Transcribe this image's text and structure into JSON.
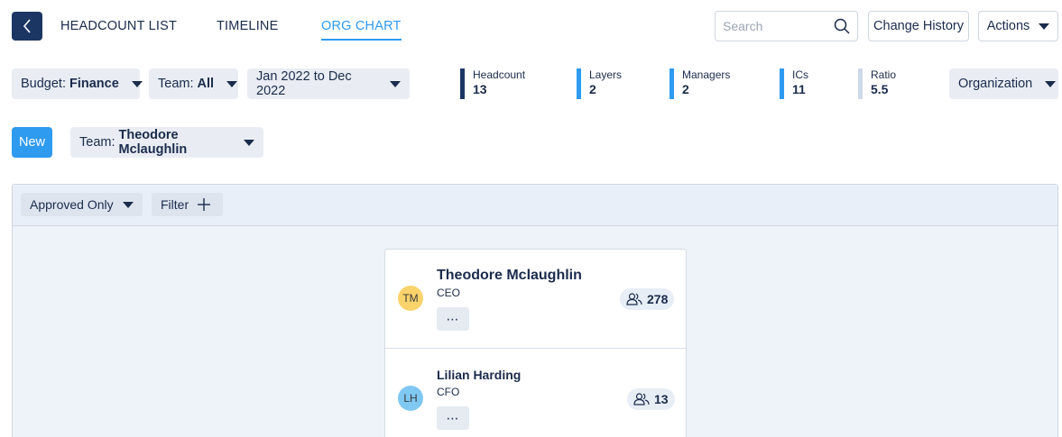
{
  "nav": {
    "tabs": [
      {
        "label": "HEADCOUNT LIST",
        "active": false
      },
      {
        "label": "TIMELINE",
        "active": false
      },
      {
        "label": "ORG CHART",
        "active": true
      }
    ]
  },
  "toolbar": {
    "search_placeholder": "Search",
    "change_history_label": "Change History",
    "actions_label": "Actions"
  },
  "filters": {
    "budget": {
      "prefix": "Budget:",
      "value": "Finance"
    },
    "team": {
      "prefix": "Team:",
      "value": "All"
    },
    "date_range": "Jan 2022 to Dec 2022",
    "view_select": "Organization"
  },
  "stats": [
    {
      "label": "Headcount",
      "value": "13",
      "color": "#1c3664"
    },
    {
      "label": "Layers",
      "value": "2",
      "color": "#2e9af0"
    },
    {
      "label": "Managers",
      "value": "2",
      "color": "#2e9af0"
    },
    {
      "label": "ICs",
      "value": "11",
      "color": "#2e9af0"
    },
    {
      "label": "Ratio",
      "value": "5.5",
      "color": "#cdd9ea"
    }
  ],
  "team_row": {
    "new_label": "New",
    "team_prefix": "Team:",
    "team_value": "Theodore Mclaughlin"
  },
  "chart_panel": {
    "approval_filter": "Approved Only",
    "filter_label": "Filter"
  },
  "people": [
    {
      "initials": "TM",
      "name": "Theodore Mclaughlin",
      "role": "CEO",
      "count": "278",
      "avatar_color": "#fbd36b",
      "more": "⋯"
    },
    {
      "initials": "LH",
      "name": "Lilian Harding",
      "role": "CFO",
      "count": "13",
      "avatar_color": "#7fc8f2",
      "more": "⋯"
    }
  ],
  "colors": {
    "accent": "#2e9af0",
    "primary_dark": "#1c3664"
  }
}
